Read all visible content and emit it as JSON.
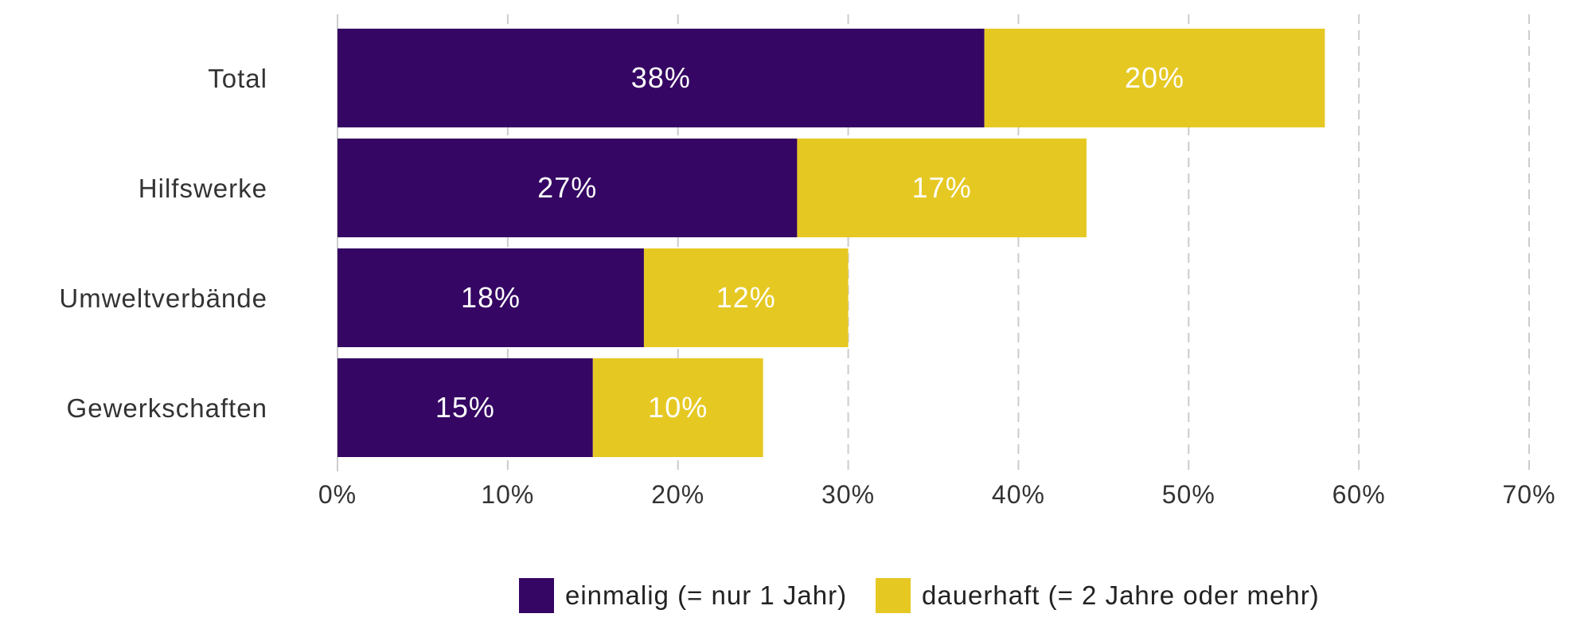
{
  "chart_data": {
    "type": "bar",
    "orientation": "horizontal",
    "stacked": true,
    "categories": [
      "Total",
      "Hilfswerke",
      "Umweltverbände",
      "Gewerkschaften"
    ],
    "series": [
      {
        "name": "einmalig (= nur 1 Jahr)",
        "values": [
          38,
          27,
          18,
          15
        ],
        "labels": [
          "38%",
          "27%",
          "18%",
          "15%"
        ],
        "color": "#350663"
      },
      {
        "name": "dauerhaft (= 2 Jahre oder mehr)",
        "values": [
          20,
          17,
          12,
          10
        ],
        "labels": [
          "20%",
          "17%",
          "12%",
          "10%"
        ],
        "color": "#E6C823"
      }
    ],
    "xticks": [
      0,
      10,
      20,
      30,
      40,
      50,
      60,
      70
    ],
    "xtick_labels": [
      "0%",
      "10%",
      "20%",
      "30%",
      "40%",
      "50%",
      "60%",
      "70%"
    ],
    "xlim": [
      0,
      70
    ],
    "grid": "vertical dashed",
    "legend_position": "bottom"
  }
}
